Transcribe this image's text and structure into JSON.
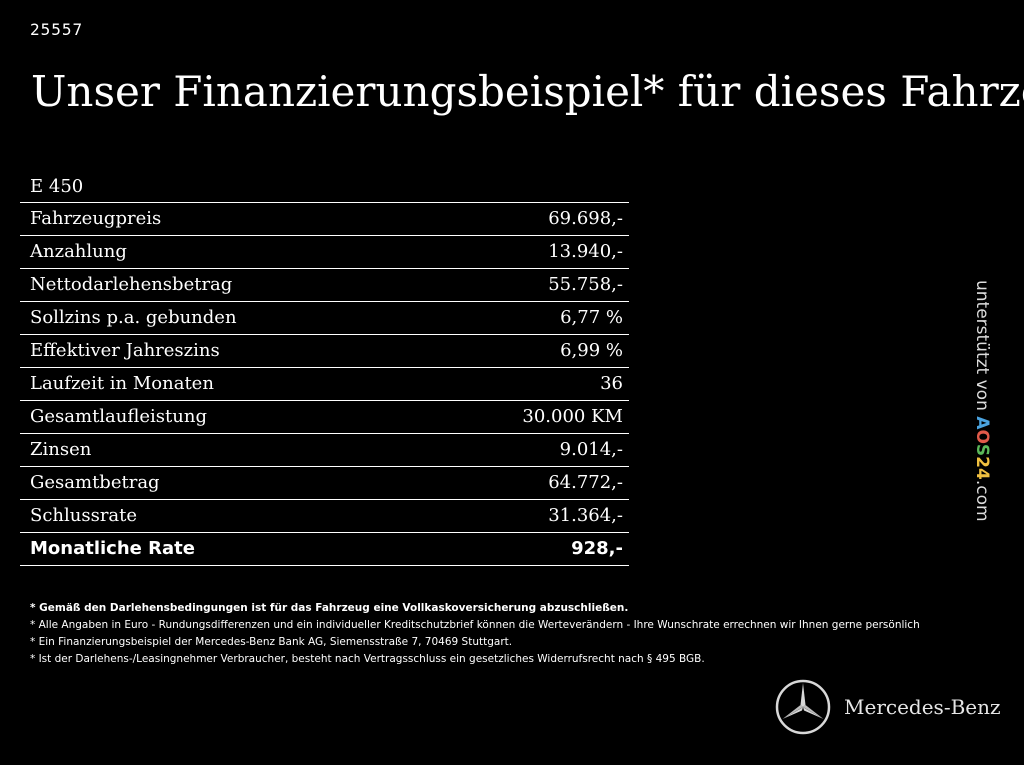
{
  "ref_id": "25557",
  "headline": "Unser Finanzierungsbeispiel* für dieses Fahrzeug:",
  "model": "E 450",
  "rows": [
    {
      "label": "Fahrzeugpreis",
      "value": "69.698,-"
    },
    {
      "label": "Anzahlung",
      "value": "13.940,-"
    },
    {
      "label": "Nettodarlehensbetrag",
      "value": "55.758,-"
    },
    {
      "label": "Sollzins p.a. gebunden",
      "value": "6,77 %"
    },
    {
      "label": "Effektiver Jahreszins",
      "value": "6,99 %"
    },
    {
      "label": "Laufzeit in Monaten",
      "value": "36"
    },
    {
      "label": "Gesamtlaufleistung",
      "value": "30.000 KM"
    },
    {
      "label": "Zinsen",
      "value": "9.014,-"
    },
    {
      "label": "Gesamtbetrag",
      "value": "64.772,-"
    },
    {
      "label": "Schlussrate",
      "value": "31.364,-"
    }
  ],
  "total": {
    "label": "Monatliche Rate",
    "value": "928,-"
  },
  "notes": [
    "* Gemäß den Darlehensbedingungen ist für das Fahrzeug eine Vollkaskoversicherung abzuschließen.",
    "* Alle Angaben in Euro - Rundungsdifferenzen und ein individueller Kreditschutzbrief können die Werteverändern - Ihre Wunschrate errechnen wir Ihnen gerne persönlich",
    "* Ein Finanzierungsbeispiel der Mercedes-Benz Bank AG, Siemensstraße 7, 70469 Stuttgart.",
    "* Ist der Darlehens-/Leasingnehmer Verbraucher, besteht nach Vertragsschluss ein gesetzliches Widerrufsrecht nach § 495 BGB."
  ],
  "credit": {
    "prefix": "unterstützt von ",
    "brand_letters": [
      "A",
      "O",
      "S",
      "2",
      "4"
    ],
    "suffix": ".com"
  },
  "logo": {
    "text": "Mercedes-Benz",
    "icon": "mercedes-star-icon"
  }
}
